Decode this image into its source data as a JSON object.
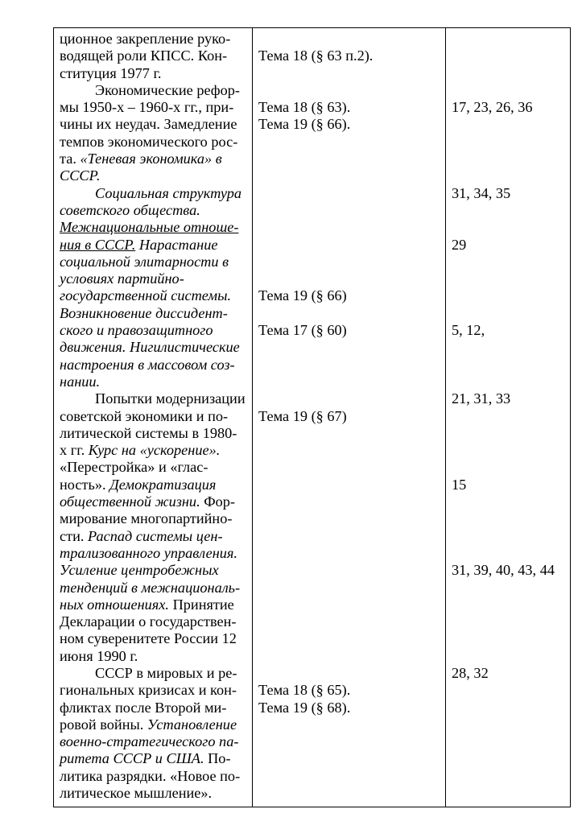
{
  "table": {
    "topics": [
      [
        [
          "ционное закрепление руко-",
          ""
        ]
      ],
      [
        [
          "водящей роли КПСС. Кон-",
          ""
        ]
      ],
      [
        [
          "ституция 1977 г.",
          ""
        ]
      ],
      [
        [
          "Экономические рефор-",
          ""
        ]
      ],
      [
        [
          "мы 1950-х – 1960-х гг., при-",
          ""
        ]
      ],
      [
        [
          "чины их неудач. Замедление",
          ""
        ]
      ],
      [
        [
          "темпов экономического рос-",
          ""
        ]
      ],
      [
        [
          "та. ",
          ""
        ],
        [
          "«Теневая экономика» в",
          "i"
        ]
      ],
      [
        [
          "СССР.",
          "i"
        ]
      ],
      [
        [
          "Социальная структура",
          "i"
        ]
      ],
      [
        [
          "советского общества.",
          "i"
        ]
      ],
      [
        [
          "Межнациональные отноше-",
          "iu"
        ]
      ],
      [
        [
          "ния в СССР.",
          "iu"
        ],
        [
          " Нарастание",
          "i"
        ]
      ],
      [
        [
          "социальной элитарности в",
          "i"
        ]
      ],
      [
        [
          "условиях партийно-",
          "i"
        ]
      ],
      [
        [
          "государственной системы.",
          "i"
        ]
      ],
      [
        [
          "Возникновение диссидент-",
          "i"
        ]
      ],
      [
        [
          "ского и правозащитного",
          "i"
        ]
      ],
      [
        [
          "движения. Нигилистические",
          "i"
        ]
      ],
      [
        [
          "настроения в массовом соз-",
          "i"
        ]
      ],
      [
        [
          "нании.",
          "i"
        ]
      ],
      [
        [
          "Попытки модернизации",
          ""
        ]
      ],
      [
        [
          "советской экономики и по-",
          ""
        ]
      ],
      [
        [
          "литической системы в 1980-",
          ""
        ]
      ],
      [
        [
          "х гг. ",
          ""
        ],
        [
          "Курс на «ускорение».",
          "i"
        ]
      ],
      [
        [
          "«Перестройка» и «глас-",
          ""
        ]
      ],
      [
        [
          "ность». ",
          ""
        ],
        [
          "Демократизация",
          "i"
        ]
      ],
      [
        [
          "общественной жизни.",
          "i"
        ],
        [
          " Фор-",
          ""
        ]
      ],
      [
        [
          "мирование многопартийно-",
          ""
        ]
      ],
      [
        [
          "сти. ",
          ""
        ],
        [
          "Распад системы цен-",
          "i"
        ]
      ],
      [
        [
          "трализованного управления.",
          "i"
        ]
      ],
      [
        [
          "Усиление центробежных",
          "i"
        ]
      ],
      [
        [
          "тенденций в межнациональ-",
          "i"
        ]
      ],
      [
        [
          "ных отношениях.",
          "i"
        ],
        [
          " Принятие",
          ""
        ]
      ],
      [
        [
          "Декларации о государствен-",
          ""
        ]
      ],
      [
        [
          "ном суверенитете России 12",
          ""
        ]
      ],
      [
        [
          "июня 1990 г.",
          ""
        ]
      ],
      [
        [
          "СССР в мировых и ре-",
          ""
        ]
      ],
      [
        [
          "гиональных кризисах и кон-",
          ""
        ]
      ],
      [
        [
          "фликтах после Второй ми-",
          ""
        ]
      ],
      [
        [
          "ровой войны. ",
          ""
        ],
        [
          "Установление",
          "i"
        ]
      ],
      [
        [
          "военно-стратегического па-",
          "i"
        ]
      ],
      [
        [
          "ритета СССР и США.",
          "i"
        ],
        [
          " По-",
          ""
        ]
      ],
      [
        [
          "литика разрядки. «Новое по-",
          ""
        ]
      ],
      [
        [
          "литическое мышление».",
          ""
        ]
      ]
    ],
    "textbook_refs": [
      "",
      "Тема  18 (§ 63 п.2).",
      "",
      "",
      "Тема 18 (§ 63).",
      "Тема 19 (§ 66).",
      "",
      "",
      "",
      "",
      "",
      "",
      "",
      "",
      "",
      "Тема  19 (§ 66)",
      "",
      "Тема 17 (§ 60)",
      "",
      "",
      "",
      "",
      "Тема 19 (§ 67)",
      "",
      "",
      "",
      "",
      "",
      "",
      "",
      "",
      "",
      "",
      "",
      "",
      "",
      "",
      "",
      "Тема 18 (§ 65).",
      "Тема 19 (§ 68).",
      "",
      "",
      "",
      "",
      ""
    ],
    "numbers": [
      "",
      "",
      "",
      "",
      "17, 23, 26, 36",
      "",
      "",
      "",
      "",
      "31, 34, 35",
      "",
      "",
      "29",
      "",
      "",
      "",
      "",
      "5, 12,",
      "",
      "",
      "",
      "21, 31, 33",
      "",
      "",
      "",
      "",
      "15",
      "",
      "",
      "",
      "",
      "31, 39, 40, 43, 44",
      "",
      "",
      "",
      "",
      "",
      "28, 32",
      "",
      "",
      "",
      "",
      "",
      ""
    ]
  }
}
